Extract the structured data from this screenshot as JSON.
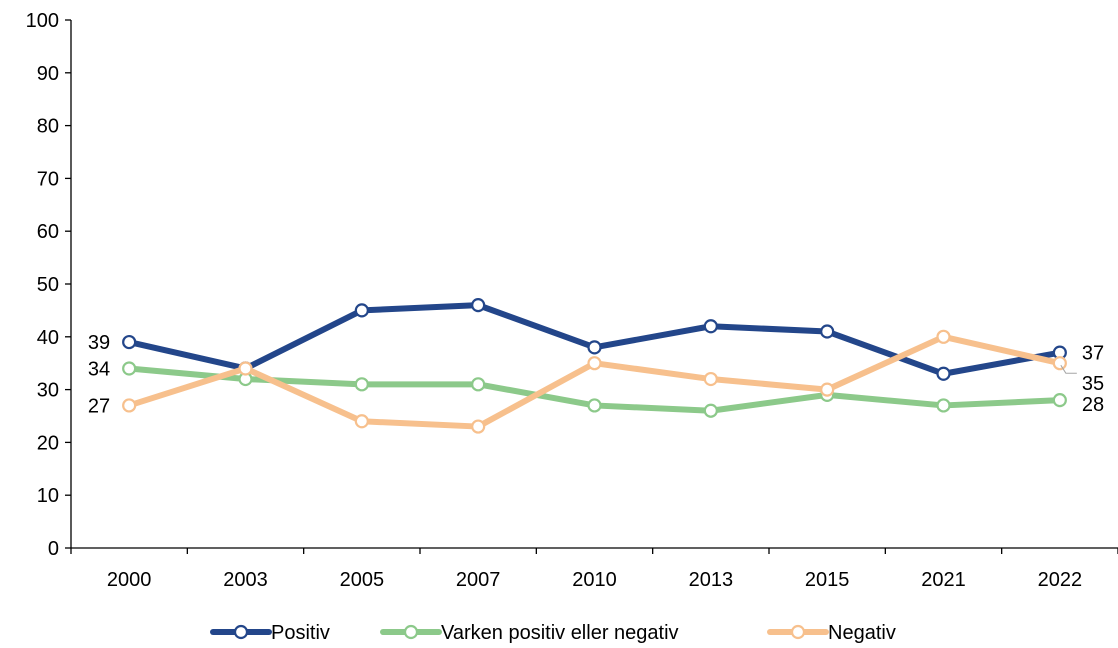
{
  "chart_data": {
    "type": "line",
    "title": "",
    "xlabel": "",
    "ylabel": "",
    "categories": [
      "2000",
      "2003",
      "2005",
      "2007",
      "2010",
      "2013",
      "2015",
      "2021",
      "2022"
    ],
    "ylim": [
      0,
      100
    ],
    "yticks": [
      0,
      10,
      20,
      30,
      40,
      50,
      60,
      70,
      80,
      90,
      100
    ],
    "grid": false,
    "legend_position": "bottom",
    "series": [
      {
        "name": "Positiv",
        "color": "#23468a",
        "values": [
          39,
          34,
          45,
          46,
          38,
          42,
          41,
          33,
          37
        ],
        "start_label": "39",
        "end_label": "37"
      },
      {
        "name": "Varken positiv eller negativ",
        "color": "#8cc98a",
        "values": [
          34,
          32,
          31,
          31,
          27,
          26,
          29,
          27,
          28
        ],
        "start_label": "34",
        "end_label": "28"
      },
      {
        "name": "Negativ",
        "color": "#f7c08d",
        "values": [
          27,
          34,
          24,
          23,
          35,
          32,
          30,
          40,
          35
        ],
        "start_label": "27",
        "end_label": "35"
      }
    ]
  }
}
